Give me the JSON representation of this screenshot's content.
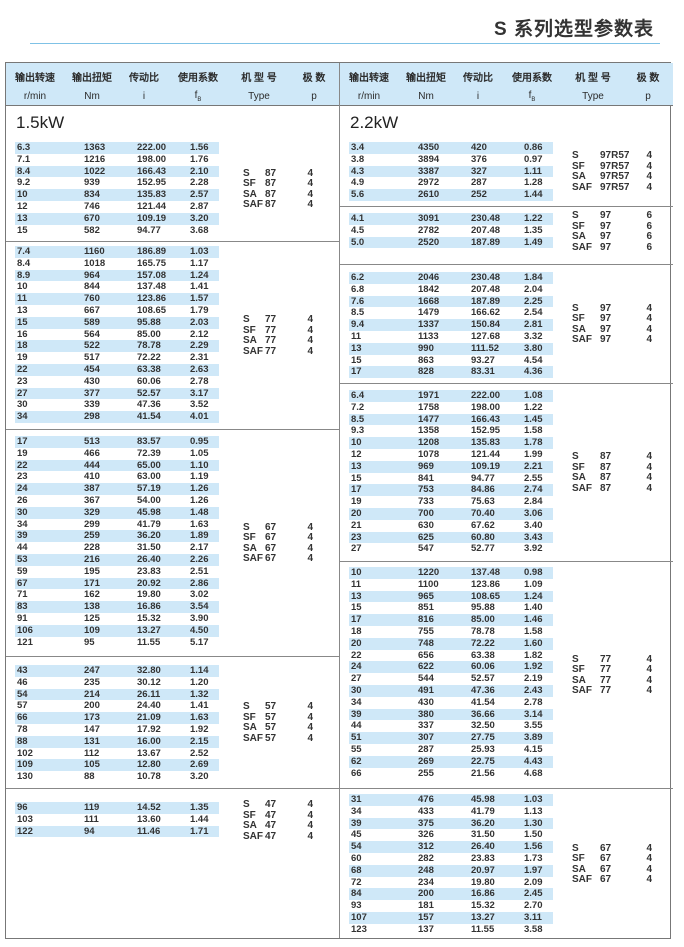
{
  "title": "S 系列选型参数表",
  "header": {
    "cn": [
      "输出转速",
      "输出扭矩",
      "传动比",
      "使用系数",
      "机 型 号",
      "极 数"
    ],
    "units": [
      "r/min",
      "Nm",
      "i",
      "fB",
      "Type",
      "p"
    ]
  },
  "left": {
    "power": "1.5kW",
    "groups": [
      {
        "rows": [
          [
            "6.3",
            "1363",
            "222.00",
            "1.56"
          ],
          [
            "7.1",
            "1216",
            "198.00",
            "1.76"
          ],
          [
            "8.4",
            "1022",
            "166.43",
            "2.10"
          ],
          [
            "9.2",
            "939",
            "152.95",
            "2.28"
          ],
          [
            "10",
            "834",
            "135.83",
            "2.57"
          ],
          [
            "12",
            "746",
            "121.44",
            "2.87"
          ],
          [
            "13",
            "670",
            "109.19",
            "3.20"
          ],
          [
            "15",
            "582",
            "94.77",
            "3.68"
          ]
        ],
        "types": [
          [
            "S",
            "87",
            "4"
          ],
          [
            "SF",
            "87",
            "4"
          ],
          [
            "SA",
            "87",
            "4"
          ],
          [
            "SAF",
            "87",
            "4"
          ]
        ]
      },
      {
        "rows": [
          [
            "7.4",
            "1160",
            "186.89",
            "1.03"
          ],
          [
            "8.4",
            "1018",
            "165.75",
            "1.17"
          ],
          [
            "8.9",
            "964",
            "157.08",
            "1.24"
          ],
          [
            "10",
            "844",
            "137.48",
            "1.41"
          ],
          [
            "11",
            "760",
            "123.86",
            "1.57"
          ],
          [
            "13",
            "667",
            "108.65",
            "1.79"
          ],
          [
            "15",
            "589",
            "95.88",
            "2.03"
          ],
          [
            "16",
            "564",
            "85.00",
            "2.12"
          ],
          [
            "18",
            "522",
            "78.78",
            "2.29"
          ],
          [
            "19",
            "517",
            "72.22",
            "2.31"
          ],
          [
            "22",
            "454",
            "63.38",
            "2.63"
          ],
          [
            "23",
            "430",
            "60.06",
            "2.78"
          ],
          [
            "27",
            "377",
            "52.57",
            "3.17"
          ],
          [
            "30",
            "339",
            "47.36",
            "3.52"
          ],
          [
            "34",
            "298",
            "41.54",
            "4.01"
          ]
        ],
        "types": [
          [
            "S",
            "77",
            "4"
          ],
          [
            "SF",
            "77",
            "4"
          ],
          [
            "SA",
            "77",
            "4"
          ],
          [
            "SAF",
            "77",
            "4"
          ]
        ]
      },
      {
        "rows": [
          [
            "17",
            "513",
            "83.57",
            "0.95"
          ],
          [
            "19",
            "466",
            "72.39",
            "1.05"
          ],
          [
            "22",
            "444",
            "65.00",
            "1.10"
          ],
          [
            "23",
            "410",
            "63.00",
            "1.19"
          ],
          [
            "24",
            "387",
            "57.19",
            "1.26"
          ],
          [
            "26",
            "367",
            "54.00",
            "1.26"
          ],
          [
            "30",
            "329",
            "45.98",
            "1.48"
          ],
          [
            "34",
            "299",
            "41.79",
            "1.63"
          ],
          [
            "39",
            "259",
            "36.20",
            "1.89"
          ],
          [
            "44",
            "228",
            "31.50",
            "2.17"
          ],
          [
            "53",
            "216",
            "26.40",
            "2.26"
          ],
          [
            "59",
            "195",
            "23.83",
            "2.51"
          ],
          [
            "67",
            "171",
            "20.92",
            "2.86"
          ],
          [
            "71",
            "162",
            "19.80",
            "3.02"
          ],
          [
            "83",
            "138",
            "16.86",
            "3.54"
          ],
          [
            "91",
            "125",
            "15.32",
            "3.90"
          ],
          [
            "106",
            "109",
            "13.27",
            "4.50"
          ],
          [
            "121",
            "95",
            "11.55",
            "5.17"
          ]
        ],
        "types": [
          [
            "S",
            "67",
            "4"
          ],
          [
            "SF",
            "67",
            "4"
          ],
          [
            "SA",
            "67",
            "4"
          ],
          [
            "SAF",
            "67",
            "4"
          ]
        ]
      },
      {
        "rows": [
          [
            "43",
            "247",
            "32.80",
            "1.14"
          ],
          [
            "46",
            "235",
            "30.12",
            "1.20"
          ],
          [
            "54",
            "214",
            "26.11",
            "1.32"
          ],
          [
            "57",
            "200",
            "24.40",
            "1.41"
          ],
          [
            "66",
            "173",
            "21.09",
            "1.63"
          ],
          [
            "78",
            "147",
            "17.92",
            "1.92"
          ],
          [
            "88",
            "131",
            "16.00",
            "2.15"
          ],
          [
            "102",
            "112",
            "13.67",
            "2.52"
          ],
          [
            "109",
            "105",
            "12.80",
            "2.69"
          ],
          [
            "130",
            "88",
            "10.78",
            "3.20"
          ]
        ],
        "types": [
          [
            "S",
            "57",
            "4"
          ],
          [
            "SF",
            "57",
            "4"
          ],
          [
            "SA",
            "57",
            "4"
          ],
          [
            "SAF",
            "57",
            "4"
          ]
        ]
      },
      {
        "rows": [
          [
            "96",
            "119",
            "14.52",
            "1.35"
          ],
          [
            "103",
            "111",
            "13.60",
            "1.44"
          ],
          [
            "122",
            "94",
            "11.46",
            "1.71"
          ]
        ],
        "types": [
          [
            "S",
            "47",
            "4"
          ],
          [
            "SF",
            "47",
            "4"
          ],
          [
            "SA",
            "47",
            "4"
          ],
          [
            "SAF",
            "47",
            "4"
          ]
        ]
      }
    ]
  },
  "right": {
    "power": "2.2kW",
    "groups": [
      {
        "rows": [
          [
            "3.4",
            "4350",
            "420",
            "0.86"
          ],
          [
            "3.8",
            "3894",
            "376",
            "0.97"
          ],
          [
            "4.3",
            "3387",
            "327",
            "1.11"
          ],
          [
            "4.9",
            "2972",
            "287",
            "1.28"
          ],
          [
            "5.6",
            "2610",
            "252",
            "1.44"
          ]
        ],
        "types": [
          [
            "S",
            "97R57",
            "4"
          ],
          [
            "SF",
            "97R57",
            "4"
          ],
          [
            "SA",
            "97R57",
            "4"
          ],
          [
            "SAF",
            "97R57",
            "4"
          ]
        ]
      },
      {
        "rows": [
          [
            "4.1",
            "3091",
            "230.48",
            "1.22"
          ],
          [
            "4.5",
            "2782",
            "207.48",
            "1.35"
          ],
          [
            "5.0",
            "2520",
            "187.89",
            "1.49"
          ]
        ],
        "types": [
          [
            "S",
            "97",
            "6"
          ],
          [
            "SF",
            "97",
            "6"
          ],
          [
            "SA",
            "97",
            "6"
          ],
          [
            "SAF",
            "97",
            "6"
          ]
        ]
      },
      {
        "rows": [
          [
            "6.2",
            "2046",
            "230.48",
            "1.84"
          ],
          [
            "6.8",
            "1842",
            "207.48",
            "2.04"
          ],
          [
            "7.6",
            "1668",
            "187.89",
            "2.25"
          ],
          [
            "8.5",
            "1479",
            "166.62",
            "2.54"
          ],
          [
            "9.4",
            "1337",
            "150.84",
            "2.81"
          ],
          [
            "11",
            "1133",
            "127.68",
            "3.32"
          ],
          [
            "13",
            "990",
            "111.52",
            "3.80"
          ],
          [
            "15",
            "863",
            "93.27",
            "4.54"
          ],
          [
            "17",
            "828",
            "83.31",
            "4.36"
          ]
        ],
        "types": [
          [
            "S",
            "97",
            "4"
          ],
          [
            "SF",
            "97",
            "4"
          ],
          [
            "SA",
            "97",
            "4"
          ],
          [
            "SAF",
            "97",
            "4"
          ]
        ]
      },
      {
        "rows": [
          [
            "6.4",
            "1971",
            "222.00",
            "1.08"
          ],
          [
            "7.2",
            "1758",
            "198.00",
            "1.22"
          ],
          [
            "8.5",
            "1477",
            "166.43",
            "1.45"
          ],
          [
            "9.3",
            "1358",
            "152.95",
            "1.58"
          ],
          [
            "10",
            "1208",
            "135.83",
            "1.78"
          ],
          [
            "12",
            "1078",
            "121.44",
            "1.99"
          ],
          [
            "13",
            "969",
            "109.19",
            "2.21"
          ],
          [
            "15",
            "841",
            "94.77",
            "2.55"
          ],
          [
            "17",
            "753",
            "84.86",
            "2.74"
          ],
          [
            "19",
            "733",
            "75.63",
            "2.84"
          ],
          [
            "20",
            "700",
            "70.40",
            "3.06"
          ],
          [
            "21",
            "630",
            "67.62",
            "3.40"
          ],
          [
            "23",
            "625",
            "60.80",
            "3.43"
          ],
          [
            "27",
            "547",
            "52.77",
            "3.92"
          ]
        ],
        "types": [
          [
            "S",
            "87",
            "4"
          ],
          [
            "SF",
            "87",
            "4"
          ],
          [
            "SA",
            "87",
            "4"
          ],
          [
            "SAF",
            "87",
            "4"
          ]
        ]
      },
      {
        "rows": [
          [
            "10",
            "1220",
            "137.48",
            "0.98"
          ],
          [
            "11",
            "1100",
            "123.86",
            "1.09"
          ],
          [
            "13",
            "965",
            "108.65",
            "1.24"
          ],
          [
            "15",
            "851",
            "95.88",
            "1.40"
          ],
          [
            "17",
            "816",
            "85.00",
            "1.46"
          ],
          [
            "18",
            "755",
            "78.78",
            "1.58"
          ],
          [
            "20",
            "748",
            "72.22",
            "1.60"
          ],
          [
            "22",
            "656",
            "63.38",
            "1.82"
          ],
          [
            "24",
            "622",
            "60.06",
            "1.92"
          ],
          [
            "27",
            "544",
            "52.57",
            "2.19"
          ],
          [
            "30",
            "491",
            "47.36",
            "2.43"
          ],
          [
            "34",
            "430",
            "41.54",
            "2.78"
          ],
          [
            "39",
            "380",
            "36.66",
            "3.14"
          ],
          [
            "44",
            "337",
            "32.50",
            "3.55"
          ],
          [
            "51",
            "307",
            "27.75",
            "3.89"
          ],
          [
            "55",
            "287",
            "25.93",
            "4.15"
          ],
          [
            "62",
            "269",
            "22.75",
            "4.43"
          ],
          [
            "66",
            "255",
            "21.56",
            "4.68"
          ]
        ],
        "types": [
          [
            "S",
            "77",
            "4"
          ],
          [
            "SF",
            "77",
            "4"
          ],
          [
            "SA",
            "77",
            "4"
          ],
          [
            "SAF",
            "77",
            "4"
          ]
        ]
      },
      {
        "rows": [
          [
            "31",
            "476",
            "45.98",
            "1.03"
          ],
          [
            "34",
            "433",
            "41.79",
            "1.13"
          ],
          [
            "39",
            "375",
            "36.20",
            "1.30"
          ],
          [
            "45",
            "326",
            "31.50",
            "1.50"
          ],
          [
            "54",
            "312",
            "26.40",
            "1.56"
          ],
          [
            "60",
            "282",
            "23.83",
            "1.73"
          ],
          [
            "68",
            "248",
            "20.97",
            "1.97"
          ],
          [
            "72",
            "234",
            "19.80",
            "2.09"
          ],
          [
            "84",
            "200",
            "16.86",
            "2.45"
          ],
          [
            "93",
            "181",
            "15.32",
            "2.70"
          ],
          [
            "107",
            "157",
            "13.27",
            "3.11"
          ],
          [
            "123",
            "137",
            "11.55",
            "3.58"
          ]
        ],
        "types": [
          [
            "S",
            "67",
            "4"
          ],
          [
            "SF",
            "67",
            "4"
          ],
          [
            "SA",
            "67",
            "4"
          ],
          [
            "SAF",
            "67",
            "4"
          ]
        ]
      }
    ]
  }
}
